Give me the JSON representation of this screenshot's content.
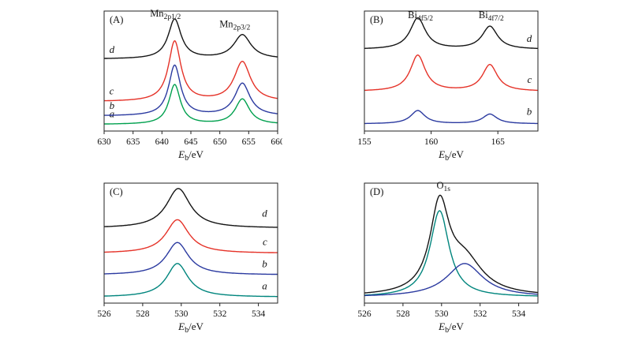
{
  "figure": {
    "background": "#ffffff"
  },
  "chart_data": {
    "type": "line",
    "description": "Four-panel XPS spectra figure: (A) Mn 2p, (B) Bi 4f, (C) O 1s region for samples a-d, (D) fitted O 1s peak with two components",
    "panels": [
      {
        "label": "(A)",
        "xlabel": {
          "main": "E",
          "sub": "b",
          "post": "/eV"
        },
        "x_min": 630,
        "x_max": 660,
        "x_ticks": [
          630,
          635,
          640,
          645,
          650,
          655,
          660
        ],
        "annotations": [
          {
            "main": "Mn",
            "sub": "2p1/2",
            "x": 640.6,
            "fy": 0.955
          },
          {
            "main": "Mn",
            "sub": "2p3/2",
            "x": 652.6,
            "fy": 0.865
          }
        ],
        "curves": [
          {
            "name": "a",
            "color": "#00a04e",
            "base": 0.055,
            "label_fx": 0.03,
            "label_fy": 0.115,
            "label_anchor": "start",
            "peaks": [
              {
                "center": 642.2,
                "hwhm": 1.2,
                "amp": 0.33
              },
              {
                "center": 653.9,
                "hwhm": 1.5,
                "amp": 0.21
              }
            ]
          },
          {
            "name": "b",
            "color": "#2b3aa0",
            "base": 0.125,
            "label_fx": 0.03,
            "label_fy": 0.185,
            "label_anchor": "start",
            "peaks": [
              {
                "center": 642.2,
                "hwhm": 1.25,
                "amp": 0.42
              },
              {
                "center": 653.9,
                "hwhm": 1.6,
                "amp": 0.27
              }
            ]
          },
          {
            "name": "c",
            "color": "#e53228",
            "base": 0.245,
            "label_fx": 0.03,
            "label_fy": 0.305,
            "label_anchor": "start",
            "peaks": [
              {
                "center": 642.2,
                "hwhm": 1.3,
                "amp": 0.5
              },
              {
                "center": 653.9,
                "hwhm": 1.7,
                "amp": 0.33
              }
            ]
          },
          {
            "name": "d",
            "color": "#141414",
            "base": 0.6,
            "label_fx": 0.03,
            "label_fy": 0.65,
            "label_anchor": "start",
            "peaks": [
              {
                "center": 642.2,
                "hwhm": 1.35,
                "amp": 0.33
              },
              {
                "center": 653.9,
                "hwhm": 1.8,
                "amp": 0.2
              }
            ]
          }
        ]
      },
      {
        "label": "(B)",
        "xlabel": {
          "main": "E",
          "sub": "b",
          "post": "/eV"
        },
        "x_min": 155,
        "x_max": 168,
        "x_ticks": [
          155,
          160,
          165
        ],
        "annotations": [
          {
            "main": "Bi",
            "sub": "4f5/2",
            "x": 159.2,
            "fy": 0.94
          },
          {
            "main": "Bi",
            "sub": "4f7/2",
            "x": 164.5,
            "fy": 0.94
          }
        ],
        "curves": [
          {
            "name": "b",
            "color": "#2b3aa0",
            "base": 0.06,
            "label_fx": 0.965,
            "label_fy": 0.135,
            "label_anchor": "end",
            "peaks": [
              {
                "center": 159.0,
                "hwhm": 0.65,
                "amp": 0.11
              },
              {
                "center": 164.4,
                "hwhm": 0.65,
                "amp": 0.08
              }
            ]
          },
          {
            "name": "c",
            "color": "#e53228",
            "base": 0.33,
            "label_fx": 0.965,
            "label_fy": 0.4,
            "label_anchor": "end",
            "peaks": [
              {
                "center": 159.0,
                "hwhm": 0.68,
                "amp": 0.3
              },
              {
                "center": 164.4,
                "hwhm": 0.68,
                "amp": 0.22
              }
            ]
          },
          {
            "name": "d",
            "color": "#141414",
            "base": 0.68,
            "label_fx": 0.965,
            "label_fy": 0.745,
            "label_anchor": "end",
            "peaks": [
              {
                "center": 159.0,
                "hwhm": 0.7,
                "amp": 0.26
              },
              {
                "center": 164.4,
                "hwhm": 0.7,
                "amp": 0.19
              }
            ]
          }
        ]
      },
      {
        "label": "(C)",
        "xlabel": {
          "main": "E",
          "sub": "b",
          "post": "/eV"
        },
        "x_min": 526,
        "x_max": 535,
        "x_ticks": [
          526,
          528,
          530,
          532,
          534
        ],
        "annotations": [],
        "curves": [
          {
            "name": "a",
            "color": "#00857d",
            "base": 0.05,
            "label_fx": 0.94,
            "label_fy": 0.115,
            "label_anchor": "end",
            "peaks": [
              {
                "center": 529.8,
                "hwhm": 0.68,
                "amp": 0.28
              }
            ]
          },
          {
            "name": "b",
            "color": "#2b3aa0",
            "base": 0.235,
            "label_fx": 0.94,
            "label_fy": 0.3,
            "label_anchor": "end",
            "peaks": [
              {
                "center": 529.8,
                "hwhm": 0.7,
                "amp": 0.27
              }
            ]
          },
          {
            "name": "c",
            "color": "#e53228",
            "base": 0.415,
            "label_fx": 0.94,
            "label_fy": 0.485,
            "label_anchor": "end",
            "peaks": [
              {
                "center": 529.8,
                "hwhm": 0.72,
                "amp": 0.28
              }
            ]
          },
          {
            "name": "d",
            "color": "#141414",
            "base": 0.625,
            "label_fx": 0.94,
            "label_fy": 0.72,
            "label_anchor": "end",
            "peaks": [
              {
                "center": 529.85,
                "hwhm": 0.75,
                "amp": 0.33
              }
            ]
          }
        ]
      },
      {
        "label": "(D)",
        "xlabel": {
          "main": "E",
          "sub": "b",
          "post": "/eV"
        },
        "x_min": 526,
        "x_max": 535,
        "x_ticks": [
          526,
          528,
          530,
          532,
          534
        ],
        "annotations": [
          {
            "main": "O",
            "sub": "1s",
            "x": 530.1,
            "fy": 0.955
          }
        ],
        "curves": [
          {
            "name": "component-main",
            "color": "#00857d",
            "base": 0.05,
            "peaks": [
              {
                "center": 529.9,
                "hwhm": 0.6,
                "amp": 0.72
              }
            ]
          },
          {
            "name": "component-shoulder",
            "color": "#2b3aa0",
            "base": 0.05,
            "peaks": [
              {
                "center": 531.2,
                "hwhm": 1.15,
                "amp": 0.28
              }
            ]
          },
          {
            "name": "envelope",
            "color": "#141414",
            "base": 0.055,
            "peaks": [
              {
                "center": 529.9,
                "hwhm": 0.6,
                "amp": 0.72
              },
              {
                "center": 531.2,
                "hwhm": 1.15,
                "amp": 0.28
              }
            ]
          }
        ]
      }
    ]
  }
}
